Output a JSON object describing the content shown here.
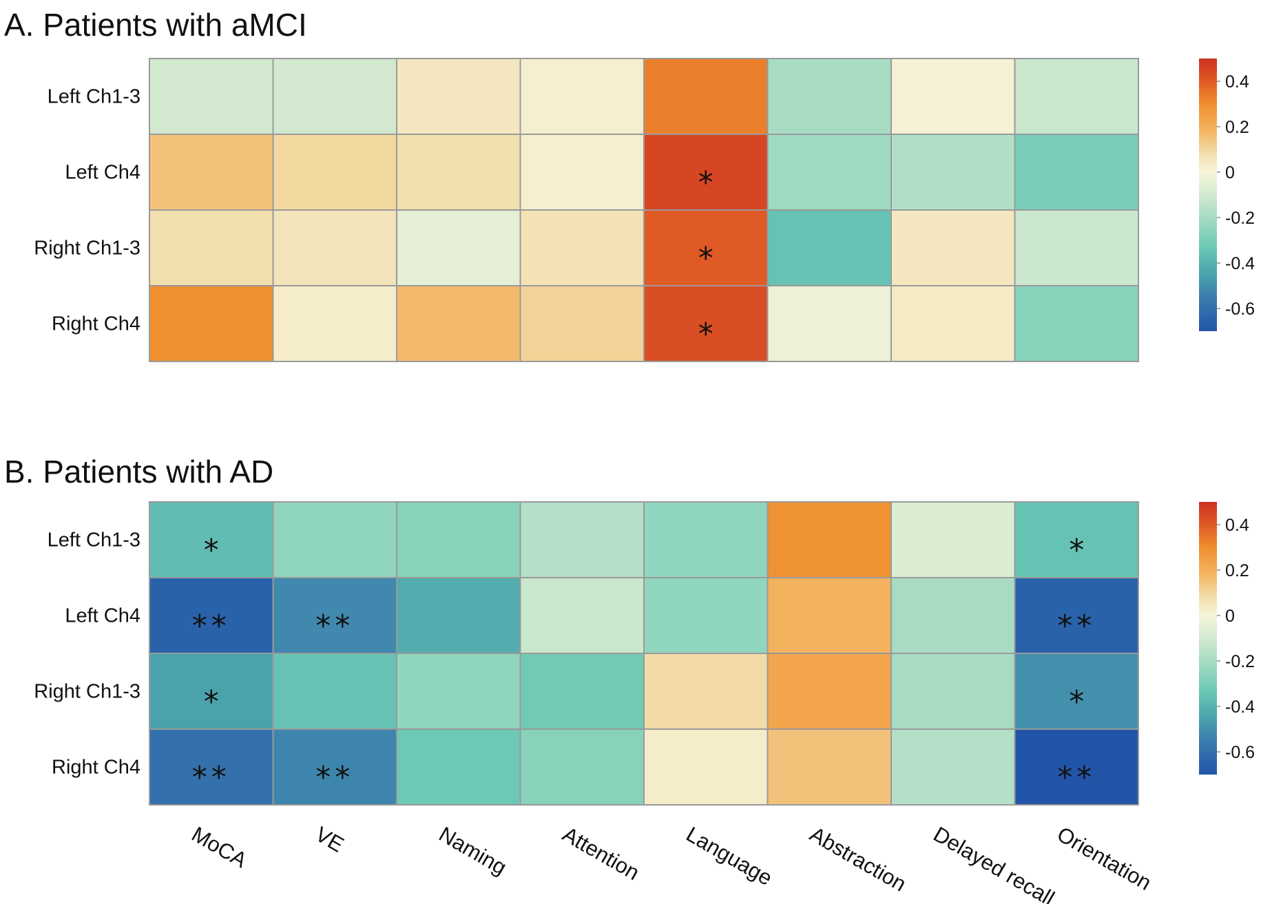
{
  "chart_data": [
    {
      "type": "heatmap",
      "title": "A. Patients with aMCI",
      "rows": [
        "Left Ch1-3",
        "Left Ch4",
        "Right Ch1-3",
        "Right Ch4"
      ],
      "columns": [
        "MoCA",
        "VE",
        "Naming",
        "Attention",
        "Language",
        "Abstraction",
        "Delayed recall",
        "Orientation"
      ],
      "values": [
        [
          -0.1,
          -0.1,
          0.05,
          0.02,
          0.33,
          -0.2,
          0.01,
          -0.12
        ],
        [
          0.15,
          0.1,
          0.08,
          0.02,
          0.45,
          -0.22,
          -0.18,
          -0.3
        ],
        [
          0.08,
          0.06,
          -0.05,
          0.07,
          0.4,
          -0.35,
          0.05,
          -0.12
        ],
        [
          0.3,
          0.03,
          0.17,
          0.11,
          0.43,
          -0.03,
          0.04,
          -0.27
        ]
      ],
      "significance": [
        [
          "",
          "",
          "",
          "",
          "",
          "",
          "",
          ""
        ],
        [
          "",
          "",
          "",
          "",
          "*",
          "",
          "",
          ""
        ],
        [
          "",
          "",
          "",
          "",
          "*",
          "",
          "",
          ""
        ],
        [
          "",
          "",
          "",
          "",
          "*",
          "",
          "",
          ""
        ]
      ],
      "colorbar": {
        "min": -0.7,
        "max": 0.5,
        "ticks": [
          "0.4",
          "0.2",
          "0",
          "-0.2",
          "-0.4",
          "-0.6"
        ],
        "tick_values": [
          0.4,
          0.2,
          0,
          -0.2,
          -0.4,
          -0.6
        ]
      }
    },
    {
      "type": "heatmap",
      "title": "B. Patients with AD",
      "rows": [
        "Left Ch1-3",
        "Left Ch4",
        "Right Ch1-3",
        "Right Ch4"
      ],
      "columns": [
        "MoCA",
        "VE",
        "Naming",
        "Attention",
        "Language",
        "Abstraction",
        "Delayed recall",
        "Orientation"
      ],
      "values": [
        [
          -0.37,
          -0.25,
          -0.27,
          -0.17,
          -0.25,
          0.29,
          -0.08,
          -0.35
        ],
        [
          -0.65,
          -0.52,
          -0.42,
          -0.12,
          -0.25,
          0.19,
          -0.2,
          -0.65
        ],
        [
          -0.45,
          -0.35,
          -0.25,
          -0.32,
          0.09,
          0.23,
          -0.2,
          -0.5
        ],
        [
          -0.6,
          -0.53,
          -0.33,
          -0.27,
          0.03,
          0.15,
          -0.17,
          -0.7
        ]
      ],
      "significance": [
        [
          "*",
          "",
          "",
          "",
          "",
          "",
          "",
          "*"
        ],
        [
          "**",
          "**",
          "",
          "",
          "",
          "",
          "",
          "**"
        ],
        [
          "*",
          "",
          "",
          "",
          "",
          "",
          "",
          "*"
        ],
        [
          "**",
          "**",
          "",
          "",
          "",
          "",
          "",
          "**"
        ]
      ],
      "colorbar": {
        "min": -0.7,
        "max": 0.5,
        "ticks": [
          "0.4",
          "0.2",
          "0",
          "-0.2",
          "-0.4",
          "-0.6"
        ],
        "tick_values": [
          0.4,
          0.2,
          0,
          -0.2,
          -0.4,
          -0.6
        ]
      }
    }
  ],
  "colors": {
    "scale": [
      {
        "v": -0.7,
        "c": "#2255a8"
      },
      {
        "v": -0.55,
        "c": "#3b7dae"
      },
      {
        "v": -0.45,
        "c": "#4aa3ab"
      },
      {
        "v": -0.33,
        "c": "#6cc9b5"
      },
      {
        "v": -0.2,
        "c": "#a7dcc3"
      },
      {
        "v": -0.08,
        "c": "#daecd2"
      },
      {
        "v": 0.0,
        "c": "#f6f4da"
      },
      {
        "v": 0.08,
        "c": "#f2dfae"
      },
      {
        "v": 0.18,
        "c": "#f4b563"
      },
      {
        "v": 0.3,
        "c": "#ef8f2f"
      },
      {
        "v": 0.4,
        "c": "#df5a25"
      },
      {
        "v": 0.5,
        "c": "#cc3120"
      }
    ]
  }
}
